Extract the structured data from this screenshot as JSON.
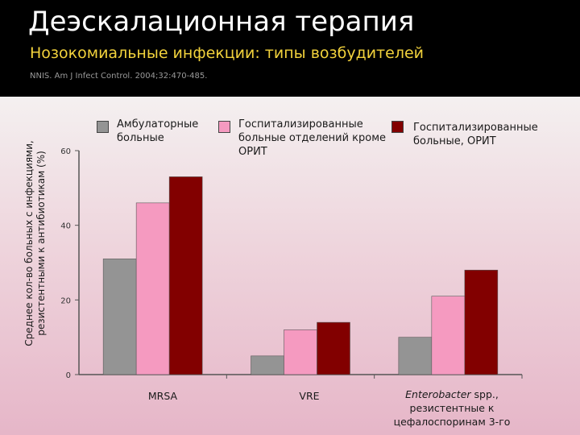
{
  "slide": {
    "title": "Деэскалационная терапия",
    "subtitle": "Нозокомиальные инфекции: типы возбудителей",
    "source": "NNIS. Am J Infect Control. 2004;32:470-485.",
    "colors": {
      "header_bg": "#000000",
      "title": "#ffffff",
      "subtitle": "#f2d23c",
      "source": "#9a9a9a"
    }
  },
  "chart_data": {
    "type": "bar",
    "ylabel": "Среднее кол-во больных с инфекциями, резистентными к антибиотикам (%)",
    "xlabel": "",
    "ylim": [
      0,
      60
    ],
    "yticks": [
      0,
      20,
      40,
      60
    ],
    "grid": false,
    "legend_position": "top",
    "categories": [
      "MRSA",
      "VRE",
      "Enterobacter spp., резистентные к цефалоспоринам 3-го"
    ],
    "category_parts": [
      {
        "italic": "",
        "rest": "MRSA"
      },
      {
        "italic": "",
        "rest": "VRE"
      },
      {
        "italic": "Enterobacter",
        "rest": " spp., резистентные к цефалоспоринам 3-го"
      }
    ],
    "series": [
      {
        "name": "Амбулаторные больные",
        "color": "#949494",
        "values": [
          31,
          5,
          10
        ]
      },
      {
        "name": "Госпитализированные больные отделений кроме ОРИТ",
        "color": "#f59ac0",
        "values": [
          46,
          12,
          21
        ]
      },
      {
        "name": "Госпитализированные больные, ОРИТ",
        "color": "#820000",
        "values": [
          53,
          14,
          28
        ]
      }
    ]
  }
}
